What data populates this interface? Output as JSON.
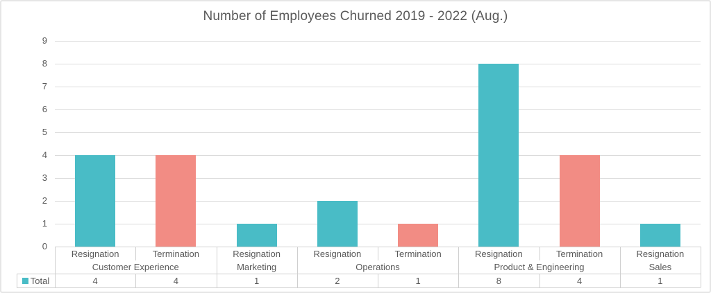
{
  "colors": {
    "resignation": "#49BCC6",
    "termination": "#F28C84",
    "title_text": "#595959",
    "axis_text": "#595959",
    "gridline": "#DBDBDB",
    "table_border": "#CFCFCF",
    "background": "#FFFFFF",
    "canvas_border": "#E5E5E5"
  },
  "legend": {
    "label": "Total",
    "marker_color": "#49BCC6",
    "position": "bottom-left-table-header"
  },
  "chart_data": {
    "type": "bar",
    "title": "Number of Employees Churned 2019 - 2022 (Aug.)",
    "xlabel": "",
    "ylabel": "",
    "ylim": [
      0,
      9
    ],
    "ytick_interval": 1,
    "yticks": [
      "0",
      "1",
      "2",
      "3",
      "4",
      "5",
      "6",
      "7",
      "8",
      "9"
    ],
    "grid": true,
    "categories": [
      "Resignation",
      "Termination",
      "Resignation",
      "Resignation",
      "Termination",
      "Resignation",
      "Termination",
      "Resignation"
    ],
    "groups": [
      {
        "department": "Customer Experience",
        "columns": [
          {
            "label": "Resignation",
            "value": 4
          },
          {
            "label": "Termination",
            "value": 4
          }
        ]
      },
      {
        "department": "Marketing",
        "columns": [
          {
            "label": "Resignation",
            "value": 1
          }
        ]
      },
      {
        "department": "Operations",
        "columns": [
          {
            "label": "Resignation",
            "value": 2
          },
          {
            "label": "Termination",
            "value": 1
          }
        ]
      },
      {
        "department": "Product & Engineering",
        "columns": [
          {
            "label": "Resignation",
            "value": 8
          },
          {
            "label": "Termination",
            "value": 4
          }
        ]
      },
      {
        "department": "Sales",
        "columns": [
          {
            "label": "Resignation",
            "value": 1
          }
        ]
      }
    ],
    "series": [
      {
        "name": "Total",
        "values": [
          4,
          4,
          1,
          2,
          1,
          8,
          4,
          1
        ]
      }
    ],
    "bar_colors_by_category": {
      "Resignation": "#49BCC6",
      "Termination": "#F28C84"
    },
    "data_table_shown": true
  }
}
